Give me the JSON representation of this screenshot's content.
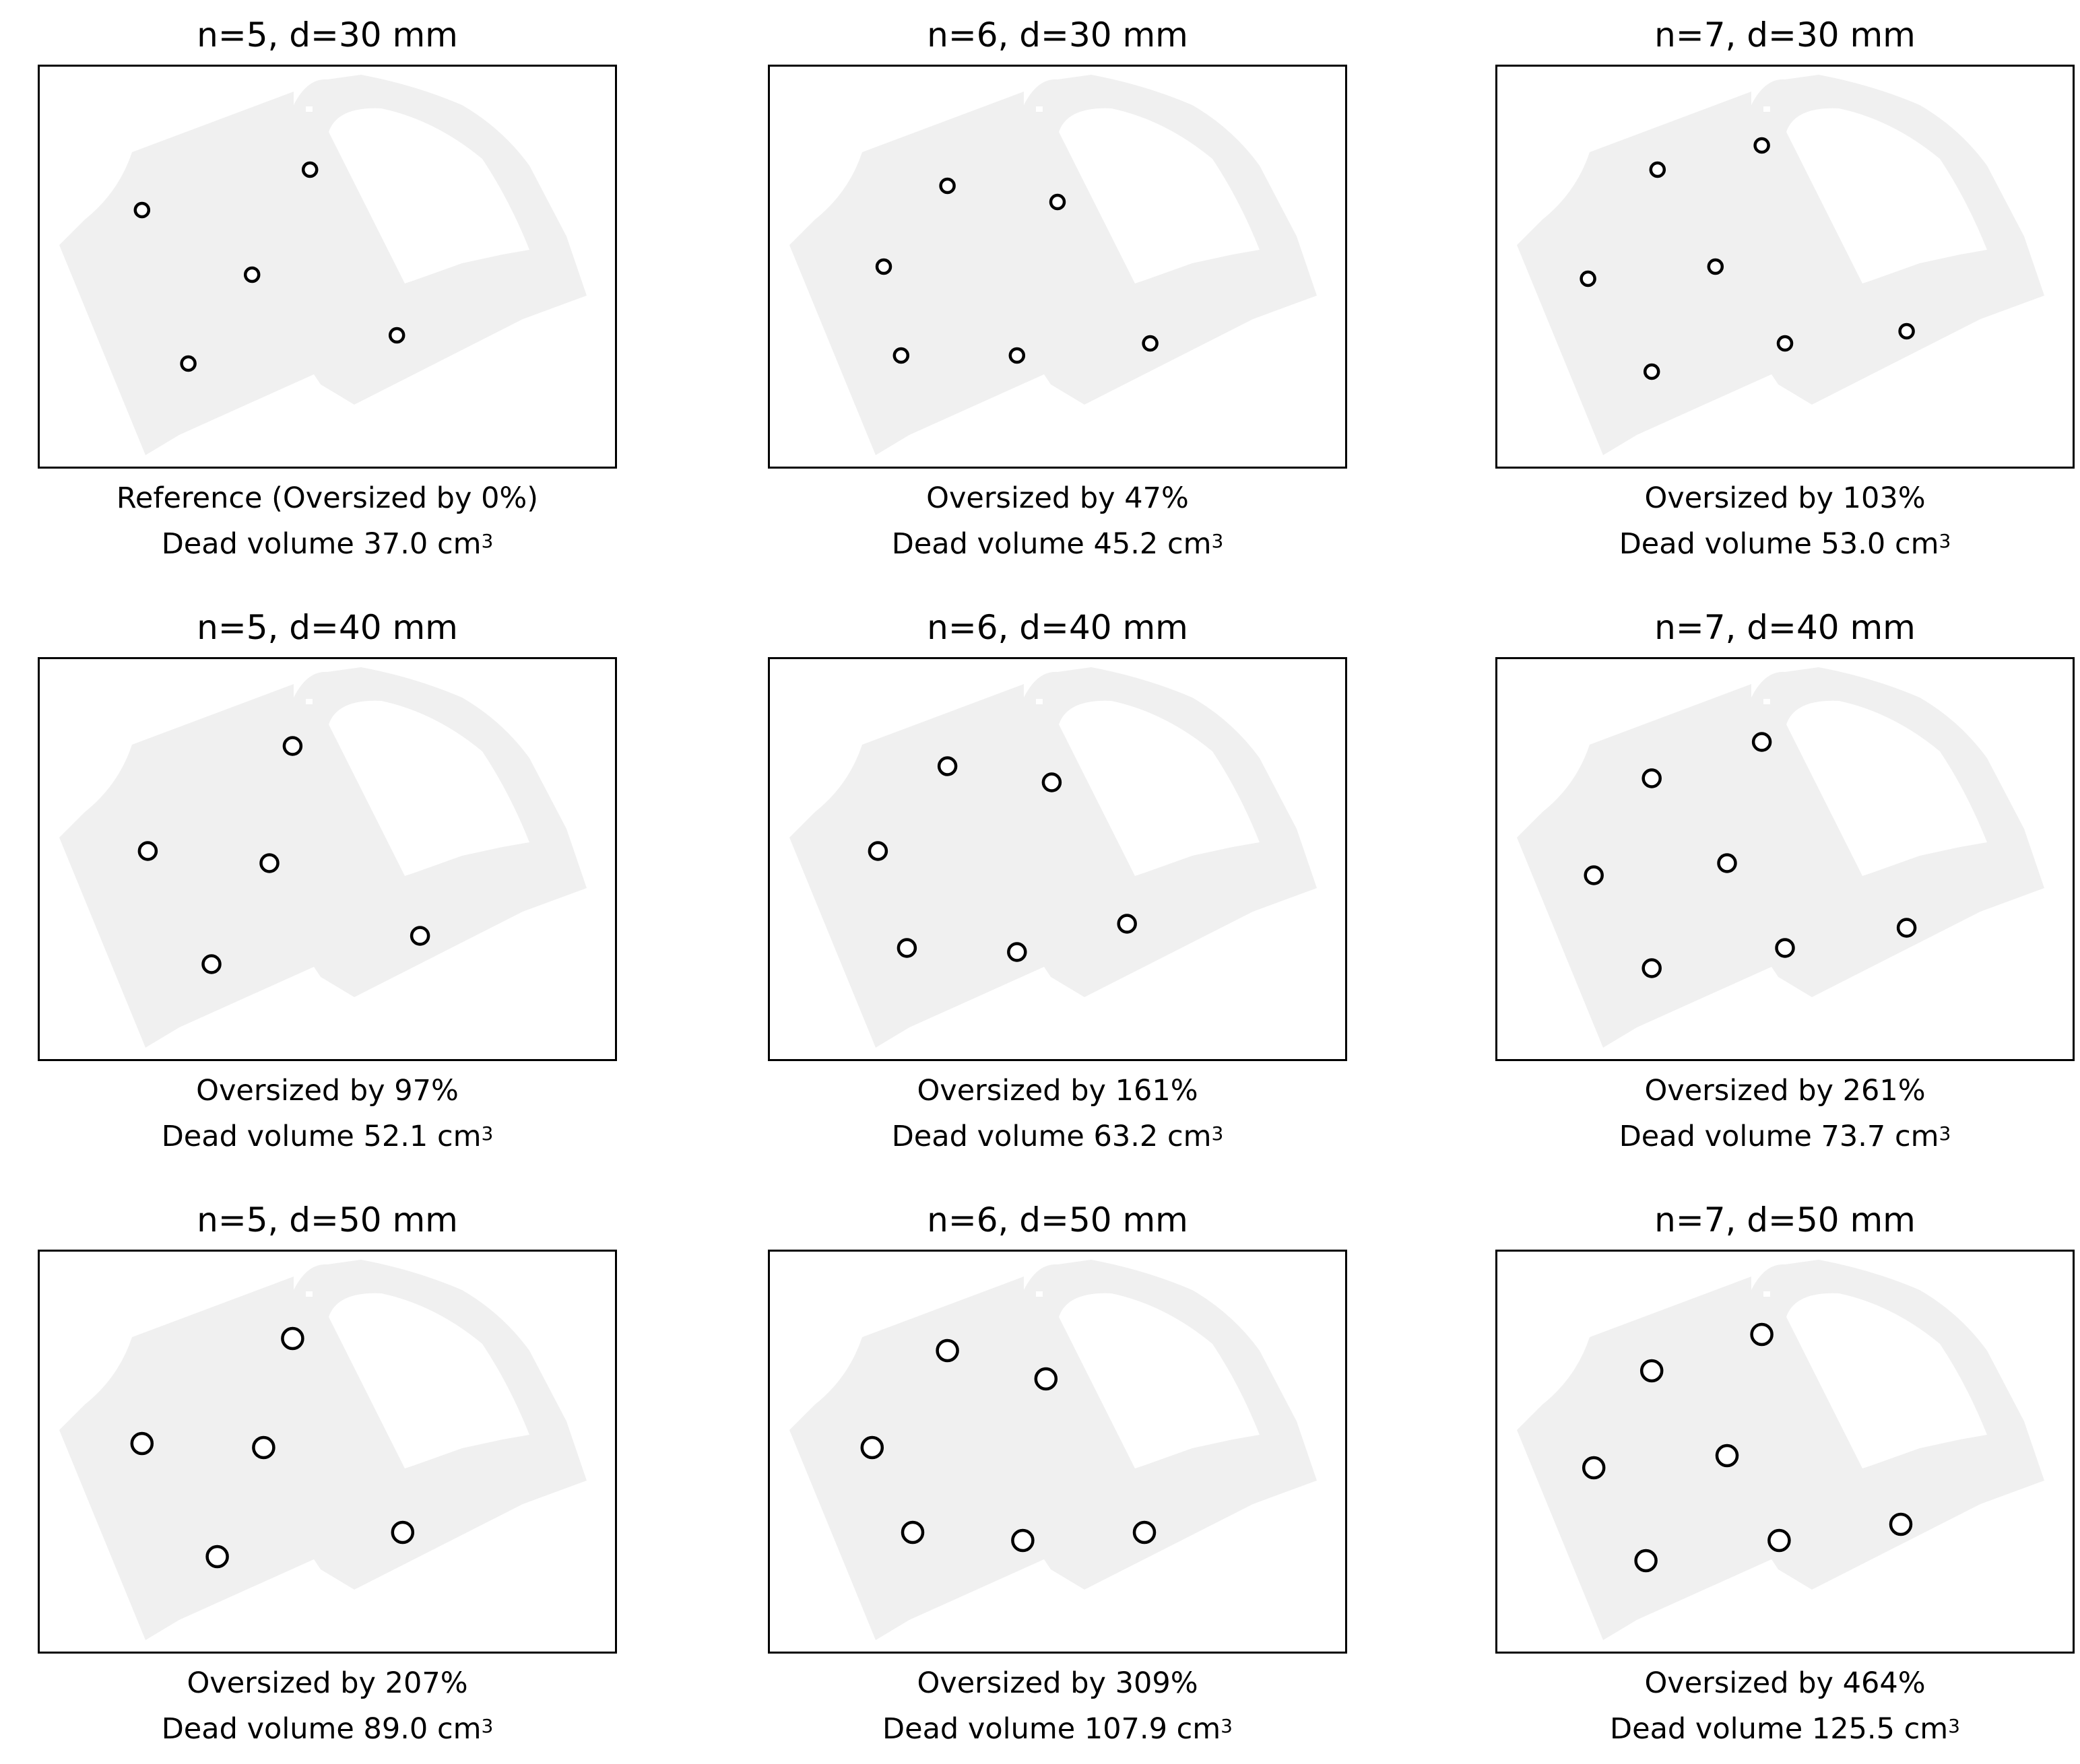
{
  "panels": [
    {
      "title": "n=5, d=30 mm",
      "caption1": "Reference (Oversized by 0%)",
      "caption2": "Dead volume 37.0 cm",
      "unit_exp": "3",
      "n": 5,
      "d_mm": 30,
      "holes": [
        [
          0.18,
          0.36
        ],
        [
          0.47,
          0.26
        ],
        [
          0.37,
          0.52
        ],
        [
          0.62,
          0.67
        ],
        [
          0.26,
          0.74
        ]
      ]
    },
    {
      "title": "n=6, d=30 mm",
      "caption1": "Oversized by 47%",
      "caption2": "Dead volume 45.2 cm",
      "unit_exp": "3",
      "n": 6,
      "d_mm": 30,
      "holes": [
        [
          0.31,
          0.3
        ],
        [
          0.5,
          0.34
        ],
        [
          0.2,
          0.5
        ],
        [
          0.23,
          0.72
        ],
        [
          0.43,
          0.72
        ],
        [
          0.66,
          0.69
        ]
      ]
    },
    {
      "title": "n=7, d=30 mm",
      "caption1": "Oversized by 103%",
      "caption2": "Dead volume 53.0 cm",
      "unit_exp": "3",
      "n": 7,
      "d_mm": 30,
      "holes": [
        [
          0.28,
          0.26
        ],
        [
          0.46,
          0.2
        ],
        [
          0.16,
          0.53
        ],
        [
          0.38,
          0.5
        ],
        [
          0.27,
          0.76
        ],
        [
          0.5,
          0.69
        ],
        [
          0.71,
          0.66
        ]
      ]
    },
    {
      "title": "n=5, d=40 mm",
      "caption1": "Oversized by 97%",
      "caption2": "Dead volume 52.1 cm",
      "unit_exp": "3",
      "n": 5,
      "d_mm": 40,
      "holes": [
        [
          0.44,
          0.22
        ],
        [
          0.19,
          0.48
        ],
        [
          0.4,
          0.51
        ],
        [
          0.66,
          0.69
        ],
        [
          0.3,
          0.76
        ]
      ]
    },
    {
      "title": "n=6, d=40 mm",
      "caption1": "Oversized by 161%",
      "caption2": "Dead volume 63.2 cm",
      "unit_exp": "3",
      "n": 6,
      "d_mm": 40,
      "holes": [
        [
          0.31,
          0.27
        ],
        [
          0.49,
          0.31
        ],
        [
          0.19,
          0.48
        ],
        [
          0.24,
          0.72
        ],
        [
          0.43,
          0.73
        ],
        [
          0.62,
          0.66
        ]
      ]
    },
    {
      "title": "n=7, d=40 mm",
      "caption1": "Oversized by 261%",
      "caption2": "Dead volume 73.7 cm",
      "unit_exp": "3",
      "n": 7,
      "d_mm": 40,
      "holes": [
        [
          0.27,
          0.3
        ],
        [
          0.46,
          0.21
        ],
        [
          0.17,
          0.54
        ],
        [
          0.4,
          0.51
        ],
        [
          0.27,
          0.77
        ],
        [
          0.5,
          0.72
        ],
        [
          0.71,
          0.67
        ]
      ]
    },
    {
      "title": "n=5, d=50 mm",
      "caption1": "Oversized by 207%",
      "caption2": "Dead volume 89.0 cm",
      "unit_exp": "3",
      "n": 5,
      "d_mm": 50,
      "holes": [
        [
          0.44,
          0.22
        ],
        [
          0.18,
          0.48
        ],
        [
          0.39,
          0.49
        ],
        [
          0.63,
          0.7
        ],
        [
          0.31,
          0.76
        ]
      ]
    },
    {
      "title": "n=6, d=50 mm",
      "caption1": "Oversized by 309%",
      "caption2": "Dead volume 107.9 cm",
      "unit_exp": "3",
      "n": 6,
      "d_mm": 50,
      "holes": [
        [
          0.31,
          0.25
        ],
        [
          0.48,
          0.32
        ],
        [
          0.18,
          0.49
        ],
        [
          0.25,
          0.7
        ],
        [
          0.44,
          0.72
        ],
        [
          0.65,
          0.7
        ]
      ]
    },
    {
      "title": "n=7, d=50 mm",
      "caption1": "Oversized by 464%",
      "caption2": "Dead volume 125.5 cm",
      "unit_exp": "3",
      "n": 7,
      "d_mm": 50,
      "holes": [
        [
          0.27,
          0.3
        ],
        [
          0.46,
          0.21
        ],
        [
          0.17,
          0.54
        ],
        [
          0.4,
          0.51
        ],
        [
          0.26,
          0.77
        ],
        [
          0.49,
          0.72
        ],
        [
          0.7,
          0.68
        ]
      ]
    }
  ],
  "colors": {
    "part": "#f0f0f0",
    "frame": "#000000",
    "hole_stroke": "#000000"
  }
}
